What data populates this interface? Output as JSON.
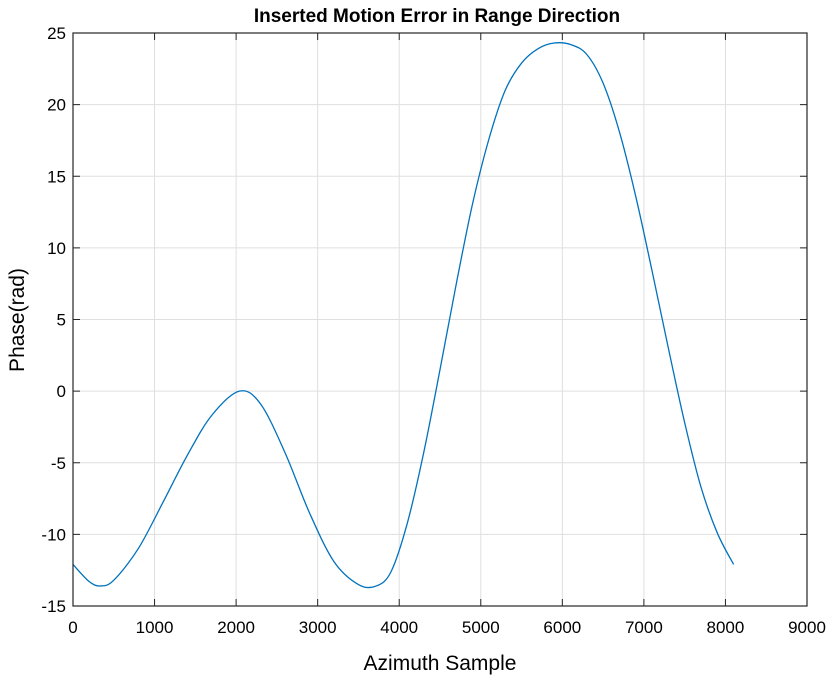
{
  "chart_data": {
    "type": "line",
    "title": "Inserted Motion Error in Range Direction",
    "xlabel": "Azimuth Sample",
    "ylabel": "Phase(rad)",
    "xlim": [
      0,
      9000
    ],
    "ylim": [
      -15,
      25
    ],
    "xticks": [
      0,
      1000,
      2000,
      3000,
      4000,
      5000,
      6000,
      7000,
      8000,
      9000
    ],
    "yticks": [
      -15,
      -10,
      -5,
      0,
      5,
      10,
      15,
      20,
      25
    ],
    "xtick_labels": [
      "0",
      "1000",
      "2000",
      "3000",
      "4000",
      "5000",
      "6000",
      "7000",
      "8000",
      "9000"
    ],
    "ytick_labels": [
      "-15",
      "-10",
      "-5",
      "0",
      "5",
      "10",
      "15",
      "20",
      "25"
    ],
    "grid": true,
    "series": [
      {
        "color": "#0072BD",
        "x": [
          0,
          200,
          340,
          500,
          800,
          1100,
          1400,
          1700,
          2040,
          2300,
          2600,
          2900,
          3200,
          3500,
          3720,
          3900,
          4100,
          4300,
          4500,
          4700,
          4900,
          5100,
          5300,
          5500,
          5700,
          5900,
          6100,
          6300,
          6500,
          6700,
          6900,
          7100,
          7300,
          7500,
          7700,
          7900,
          8100
        ],
        "y": [
          -12.1,
          -13.3,
          -13.6,
          -13.2,
          -11.0,
          -7.8,
          -4.5,
          -1.7,
          0.0,
          -0.9,
          -4.3,
          -8.5,
          -11.9,
          -13.5,
          -13.6,
          -12.6,
          -9.2,
          -4.3,
          1.5,
          7.5,
          13.1,
          17.6,
          21.0,
          22.9,
          23.9,
          24.3,
          24.2,
          23.5,
          21.5,
          18.1,
          13.6,
          8.4,
          3.0,
          -2.2,
          -6.7,
          -9.9,
          -12.1
        ]
      }
    ]
  }
}
